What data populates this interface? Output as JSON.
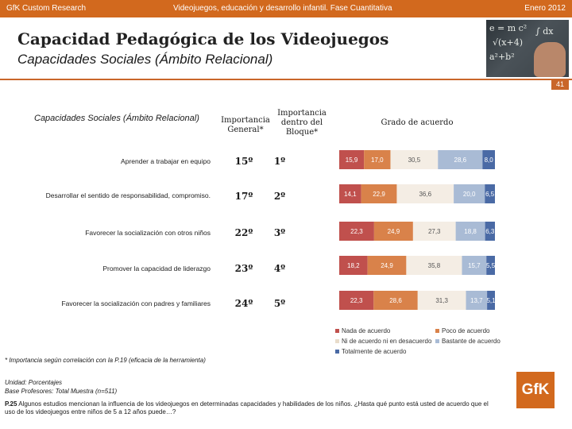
{
  "header": {
    "left": "GfK Custom Research",
    "center": "Videojuegos, educación y desarrollo infantil. Fase Cuantitativa",
    "right": "Enero 2012"
  },
  "title": "Capacidad Pedagógica de los Videojuegos",
  "subtitle": "Capacidades Sociales (Ámbito Relacional)",
  "page_number": "41",
  "photo_chalk": [
    "e = m c²",
    "√(x+4)",
    "a²+b²",
    "∫ dx"
  ],
  "table_header": {
    "section": "Capacidades Sociales (Ámbito Relacional)",
    "col1": "Importancia General*",
    "col2": "Importancia dentro del Bloque*",
    "col3": "Grado de acuerdo"
  },
  "rows": [
    {
      "label": "Aprender a trabajar en equipo",
      "rank_general": "15º",
      "rank_block": "1º"
    },
    {
      "label": "Desarrollar el sentido de responsabilidad, compromiso.",
      "rank_general": "17º",
      "rank_block": "2º"
    },
    {
      "label": "Favorecer la socialización con otros niños",
      "rank_general": "22º",
      "rank_block": "3º"
    },
    {
      "label": "Promover la capacidad de liderazgo",
      "rank_general": "23º",
      "rank_block": "4º"
    },
    {
      "label": "Favorecer la socialización con padres y familiares",
      "rank_general": "24º",
      "rank_block": "5º"
    }
  ],
  "chart_data": {
    "type": "bar",
    "orientation": "horizontal-stacked-100",
    "title": "Grado de acuerdo",
    "categories": [
      "Aprender a trabajar en equipo",
      "Desarrollar el sentido de responsabilidad, compromiso.",
      "Favorecer la socialización con otros niños",
      "Promover la capacidad de liderazgo",
      "Favorecer la socialización con padres y familiares"
    ],
    "series": [
      {
        "name": "Nada de acuerdo",
        "color": "#c0504d",
        "values": [
          15.9,
          14.1,
          22.3,
          18.2,
          22.3
        ],
        "labels": [
          "15,9",
          "14,1",
          "22,3",
          "18,2",
          "22,3"
        ]
      },
      {
        "name": "Poco de acuerdo",
        "color": "#d9824a",
        "values": [
          17.0,
          22.9,
          24.9,
          24.9,
          28.6
        ],
        "labels": [
          "17,0",
          "22,9",
          "24,9",
          "24,9",
          "28,6"
        ]
      },
      {
        "name": "Ni de acuerdo ni en desacuerdo",
        "color": "#f4ede4",
        "values": [
          30.5,
          36.6,
          27.3,
          35.8,
          31.3
        ],
        "labels": [
          "30,5",
          "36,6",
          "27,3",
          "35,8",
          "31,3"
        ]
      },
      {
        "name": "Bastante de acuerdo",
        "color": "#a9bbd5",
        "values": [
          28.6,
          20.0,
          18.8,
          15.7,
          13.7
        ],
        "labels": [
          "28,6",
          "20,0",
          "18,8",
          "15,7",
          "13,7"
        ]
      },
      {
        "name": "Totalmente de acuerdo",
        "color": "#4a6aa5",
        "values": [
          8.0,
          6.5,
          6.3,
          5.5,
          5.1
        ],
        "labels": [
          "8,0",
          "6,5",
          "6,3",
          "5,5",
          "5,1"
        ]
      }
    ],
    "xlim": [
      0,
      100
    ],
    "legend_position": "bottom"
  },
  "footnotes": {
    "importance": "* Importancia según correlación con la P.19 (eficacia de la herramienta)",
    "unit": "Unidad: Porcentajes",
    "base": "Base Profesores: Total Muestra (n=511)",
    "question_ref": "P.25",
    "question_text": "Algunos estudios mencionan la influencia de los videojuegos en determinadas capacidades y habilidades de los niños. ¿Hasta qué punto está usted de acuerdo que el uso de los videojuegos entre niños de 5 a 12 años puede…?"
  },
  "brand": "GfK"
}
